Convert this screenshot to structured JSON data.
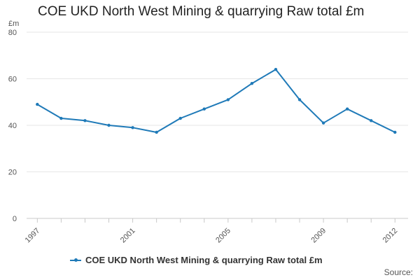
{
  "chart_data": {
    "type": "line",
    "title": "COE UKD North West Mining & quarrying Raw total £m",
    "ylabel": "£m",
    "xlabel": "",
    "ylim": [
      0,
      80
    ],
    "y_ticks": [
      0,
      20,
      40,
      60,
      80
    ],
    "x_tick_labels": [
      "1997",
      "2001",
      "2005",
      "2009",
      "2012"
    ],
    "grid": true,
    "legend_position": "bottom",
    "series": [
      {
        "name": "COE UKD North West Mining & quarrying Raw total £m",
        "color": "#1f7ab8",
        "x": [
          1997,
          1998,
          1999,
          2000,
          2001,
          2002,
          2003,
          2004,
          2005,
          2006,
          2007,
          2008,
          2009,
          2010,
          2011,
          2012
        ],
        "y": [
          49,
          43,
          42,
          40,
          39,
          37,
          43,
          47,
          51,
          58,
          64,
          51,
          41,
          47,
          42,
          37
        ]
      }
    ]
  },
  "footer": {
    "source_label": "Source:"
  }
}
